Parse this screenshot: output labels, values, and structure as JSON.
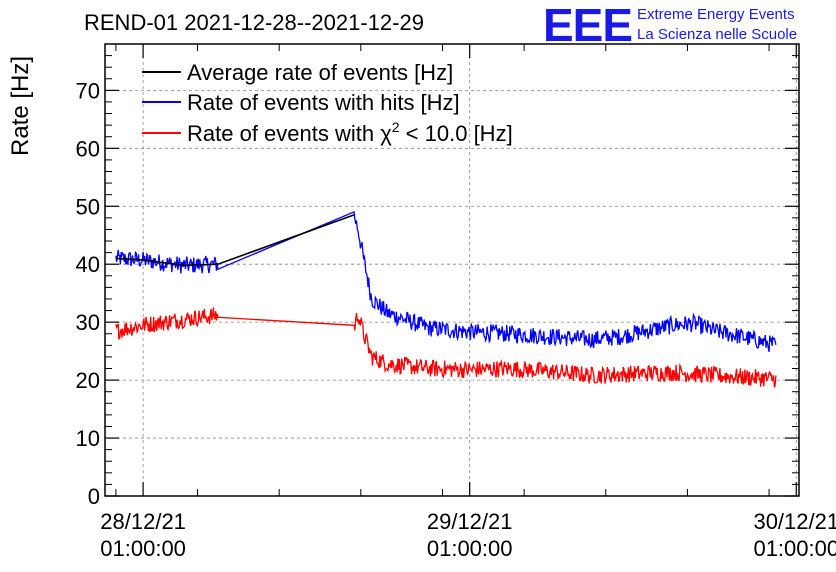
{
  "chart_data": {
    "type": "line",
    "title": "REND-01 2021-12-28--2021-12-29",
    "ylabel": "Rate [Hz]",
    "xlabel": "",
    "ylim": [
      0,
      78
    ],
    "yticks": [
      0,
      10,
      20,
      30,
      40,
      50,
      60,
      70
    ],
    "xlim_hours": [
      -2.8,
      48.2
    ],
    "xticks": [
      {
        "hour": 0,
        "date": "28/12/21",
        "time": "01:00:00"
      },
      {
        "hour": 24,
        "date": "29/12/21",
        "time": "01:00:00"
      },
      {
        "hour": 48,
        "date": "30/12/21",
        "time": "01:00:00"
      }
    ],
    "grid": true,
    "legend_position": "top-left",
    "series": [
      {
        "name": "Average rate of events [Hz]",
        "color": "#000000",
        "x": [
          -2.0,
          0,
          3,
          5.5,
          15.5
        ],
        "values": [
          41,
          40.7,
          39.8,
          40.0,
          48.5
        ]
      },
      {
        "name": "Rate of events with hits [Hz]",
        "color": "#0000ff",
        "x": [
          -2.0,
          0,
          3,
          5.5,
          15.5,
          15.8,
          16.2,
          16.8,
          18,
          21,
          24,
          27,
          30,
          33,
          35,
          37,
          39,
          40.5,
          42,
          44,
          46.5
        ],
        "values": [
          41,
          40.7,
          39.8,
          40.0,
          48.5,
          46,
          41,
          34,
          31.5,
          29,
          28.3,
          28,
          27.5,
          27,
          27.5,
          28.5,
          29.5,
          29.8,
          28.5,
          27.5,
          26
        ]
      },
      {
        "name": "Rate of events with χ² < 10.0 [Hz]",
        "color": "#ff0000",
        "x": [
          -2.0,
          0,
          3,
          5.5,
          15.5,
          15.8,
          16.2,
          16.8,
          18,
          21,
          24,
          27,
          30,
          33,
          35,
          37,
          39,
          42,
          46.5
        ],
        "values": [
          28.5,
          29.5,
          30.5,
          31.2,
          29.0,
          31.5,
          28,
          24,
          22.8,
          22,
          21.8,
          22,
          21.5,
          20.8,
          21,
          21.2,
          21.3,
          20.8,
          20.2
        ]
      }
    ],
    "legend": [
      {
        "label": "Average rate of events [Hz]",
        "color": "#000000"
      },
      {
        "label": "Rate of events with hits [Hz]",
        "color": "#0000ff"
      },
      {
        "label_prefix": "Rate of events with χ",
        "label_sup": "2",
        "label_suffix": " < 10.0 [Hz]",
        "color": "#ff0000"
      }
    ]
  },
  "logo": {
    "mark": "EEE",
    "line1": "Extreme Energy Events",
    "line2": "La Scienza nelle Scuole",
    "color": "#1a1ae6"
  }
}
